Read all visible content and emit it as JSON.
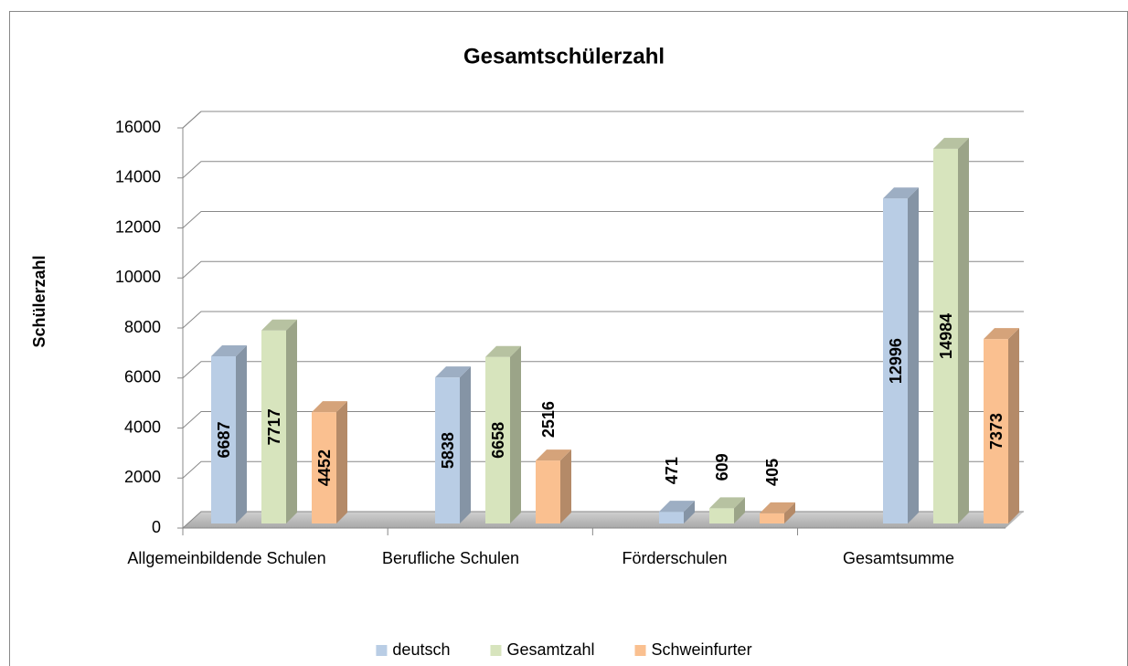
{
  "chart_data": {
    "type": "bar3d",
    "title": "Gesamtschülerzahl",
    "y_label": "Schülerzahl",
    "categories": [
      "Allgemeinbildende Schulen",
      "Berufliche Schulen",
      "Förderschulen",
      "Gesamtsumme"
    ],
    "series": [
      {
        "name": "deutsch",
        "color": "#b9cde5",
        "values": [
          6687,
          5838,
          471,
          12996
        ]
      },
      {
        "name": "Gesamtzahl",
        "color": "#d7e4bd",
        "values": [
          7717,
          6658,
          609,
          14984
        ]
      },
      {
        "name": "Schweinfurter",
        "color": "#fac090",
        "values": [
          4452,
          2516,
          405,
          7373
        ]
      }
    ],
    "ylim": [
      0,
      16000
    ],
    "yticks": [
      0,
      2000,
      4000,
      6000,
      8000,
      10000,
      12000,
      14000,
      16000
    ],
    "grid": true
  }
}
